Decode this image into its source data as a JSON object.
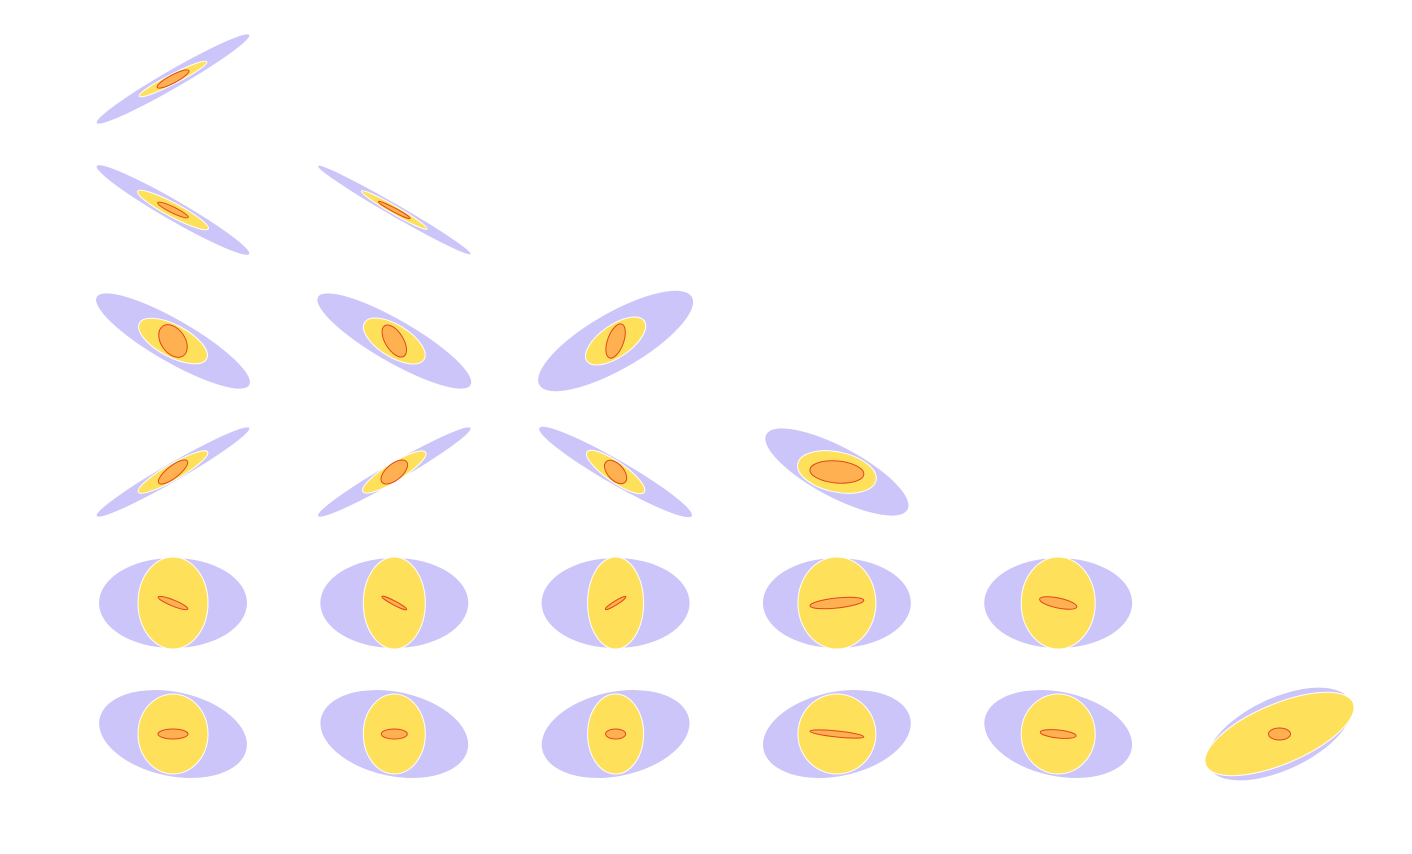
{
  "chart_data": {
    "type": "scatter",
    "description_kind": "triangle-plot",
    "grid": false,
    "legend": "none",
    "colors": {
      "outer": "#cbc5fa",
      "middle": "#ffe05a",
      "middle_edge": "#ffffff",
      "inner": "#ffb152",
      "inner_edge": "#e0471a"
    },
    "panels": [
      {
        "row": 1,
        "col": 1,
        "ellipses": [
          {
            "layer": "outer",
            "angle": -30,
            "rx": 88,
            "ry": 9
          },
          {
            "layer": "middle",
            "angle": -27,
            "rx": 38,
            "ry": 5
          },
          {
            "layer": "inner",
            "angle": -28,
            "rx": 18,
            "ry": 4
          }
        ]
      },
      {
        "row": 2,
        "col": 1,
        "ellipses": [
          {
            "layer": "outer",
            "angle": 30,
            "rx": 88,
            "ry": 10
          },
          {
            "layer": "middle",
            "angle": 28,
            "rx": 40,
            "ry": 7
          },
          {
            "layer": "inner",
            "angle": 26,
            "rx": 17,
            "ry": 3
          }
        ]
      },
      {
        "row": 2,
        "col": 2,
        "ellipses": [
          {
            "layer": "outer",
            "angle": 30,
            "rx": 88,
            "ry": 6
          },
          {
            "layer": "middle",
            "angle": 30,
            "rx": 38,
            "ry": 4
          },
          {
            "layer": "inner",
            "angle": 28,
            "rx": 18,
            "ry": 2
          }
        ]
      },
      {
        "row": 3,
        "col": 1,
        "ellipses": [
          {
            "layer": "outer",
            "angle": 30,
            "rx": 88,
            "ry": 21
          },
          {
            "layer": "middle",
            "angle": 28,
            "rx": 38,
            "ry": 16
          },
          {
            "layer": "inner",
            "angle": 55,
            "rx": 18,
            "ry": 12
          }
        ]
      },
      {
        "row": 3,
        "col": 2,
        "ellipses": [
          {
            "layer": "outer",
            "angle": 30,
            "rx": 88,
            "ry": 21
          },
          {
            "layer": "middle",
            "angle": 32,
            "rx": 35,
            "ry": 16
          },
          {
            "layer": "inner",
            "angle": 58,
            "rx": 18,
            "ry": 9
          }
        ]
      },
      {
        "row": 3,
        "col": 3,
        "ellipses": [
          {
            "layer": "outer",
            "angle": -30,
            "rx": 88,
            "ry": 28
          },
          {
            "layer": "middle",
            "angle": -35,
            "rx": 35,
            "ry": 16
          },
          {
            "layer": "inner",
            "angle": -70,
            "rx": 18,
            "ry": 8
          }
        ]
      },
      {
        "row": 4,
        "col": 1,
        "ellipses": [
          {
            "layer": "outer",
            "angle": -30,
            "rx": 88,
            "ry": 9
          },
          {
            "layer": "middle",
            "angle": -30,
            "rx": 40,
            "ry": 8
          },
          {
            "layer": "inner",
            "angle": -38,
            "rx": 18,
            "ry": 6
          }
        ]
      },
      {
        "row": 4,
        "col": 2,
        "ellipses": [
          {
            "layer": "outer",
            "angle": -30,
            "rx": 88,
            "ry": 9
          },
          {
            "layer": "middle",
            "angle": -32,
            "rx": 37,
            "ry": 9
          },
          {
            "layer": "inner",
            "angle": -40,
            "rx": 16,
            "ry": 8
          }
        ]
      },
      {
        "row": 4,
        "col": 3,
        "ellipses": [
          {
            "layer": "outer",
            "angle": 30,
            "rx": 88,
            "ry": 12
          },
          {
            "layer": "middle",
            "angle": 35,
            "rx": 35,
            "ry": 10
          },
          {
            "layer": "inner",
            "angle": 48,
            "rx": 14,
            "ry": 8
          }
        ]
      },
      {
        "row": 4,
        "col": 4,
        "ellipses": [
          {
            "layer": "outer",
            "angle": 28,
            "rx": 80,
            "ry": 25
          },
          {
            "layer": "middle",
            "angle": 12,
            "rx": 40,
            "ry": 20
          },
          {
            "layer": "inner",
            "angle": 5,
            "rx": 27,
            "ry": 11
          }
        ]
      },
      {
        "row": 5,
        "col": 1,
        "ellipses": [
          {
            "layer": "outer",
            "angle": 0,
            "rx": 74,
            "ry": 45
          },
          {
            "layer": "middle",
            "angle": 0,
            "rx": 35,
            "ry": 46
          },
          {
            "layer": "inner",
            "angle": 22,
            "rx": 16,
            "ry": 3
          }
        ]
      },
      {
        "row": 5,
        "col": 2,
        "ellipses": [
          {
            "layer": "outer",
            "angle": 0,
            "rx": 74,
            "ry": 45
          },
          {
            "layer": "middle",
            "angle": 0,
            "rx": 31,
            "ry": 46
          },
          {
            "layer": "inner",
            "angle": 28,
            "rx": 14,
            "ry": 2
          }
        ]
      },
      {
        "row": 5,
        "col": 3,
        "ellipses": [
          {
            "layer": "outer",
            "angle": 0,
            "rx": 74,
            "ry": 45
          },
          {
            "layer": "middle",
            "angle": 0,
            "rx": 28,
            "ry": 46
          },
          {
            "layer": "inner",
            "angle": -32,
            "rx": 12,
            "ry": 2
          }
        ]
      },
      {
        "row": 5,
        "col": 4,
        "ellipses": [
          {
            "layer": "outer",
            "angle": 0,
            "rx": 74,
            "ry": 45
          },
          {
            "layer": "middle",
            "angle": 0,
            "rx": 39,
            "ry": 46
          },
          {
            "layer": "inner",
            "angle": -6,
            "rx": 27,
            "ry": 5
          }
        ]
      },
      {
        "row": 5,
        "col": 5,
        "ellipses": [
          {
            "layer": "outer",
            "angle": 0,
            "rx": 74,
            "ry": 45
          },
          {
            "layer": "middle",
            "angle": 0,
            "rx": 37,
            "ry": 46
          },
          {
            "layer": "inner",
            "angle": 12,
            "rx": 19,
            "ry": 5
          }
        ]
      },
      {
        "row": 6,
        "col": 1,
        "ellipses": [
          {
            "layer": "outer",
            "angle": 12,
            "rx": 75,
            "ry": 42
          },
          {
            "layer": "middle",
            "angle": 0,
            "rx": 35,
            "ry": 40
          },
          {
            "layer": "inner",
            "angle": 0,
            "rx": 15,
            "ry": 5
          }
        ]
      },
      {
        "row": 6,
        "col": 2,
        "ellipses": [
          {
            "layer": "outer",
            "angle": 12,
            "rx": 75,
            "ry": 42
          },
          {
            "layer": "middle",
            "angle": 0,
            "rx": 31,
            "ry": 40
          },
          {
            "layer": "inner",
            "angle": 0,
            "rx": 13,
            "ry": 5
          }
        ]
      },
      {
        "row": 6,
        "col": 3,
        "ellipses": [
          {
            "layer": "outer",
            "angle": -12,
            "rx": 75,
            "ry": 42
          },
          {
            "layer": "middle",
            "angle": 0,
            "rx": 28,
            "ry": 40
          },
          {
            "layer": "inner",
            "angle": 0,
            "rx": 10,
            "ry": 5
          }
        ]
      },
      {
        "row": 6,
        "col": 4,
        "ellipses": [
          {
            "layer": "outer",
            "angle": -12,
            "rx": 75,
            "ry": 42
          },
          {
            "layer": "middle",
            "angle": 0,
            "rx": 39,
            "ry": 40
          },
          {
            "layer": "inner",
            "angle": 6,
            "rx": 27,
            "ry": 3
          }
        ]
      },
      {
        "row": 6,
        "col": 5,
        "ellipses": [
          {
            "layer": "outer",
            "angle": 12,
            "rx": 75,
            "ry": 42
          },
          {
            "layer": "middle",
            "angle": 0,
            "rx": 37,
            "ry": 40
          },
          {
            "layer": "inner",
            "angle": 6,
            "rx": 18,
            "ry": 4
          }
        ]
      },
      {
        "row": 6,
        "col": 6,
        "ellipses": [
          {
            "layer": "outer",
            "angle": -25,
            "rx": 78,
            "ry": 36
          },
          {
            "layer": "middle",
            "angle": -23,
            "rx": 80,
            "ry": 30
          },
          {
            "layer": "inner",
            "angle": 0,
            "rx": 11,
            "ry": 6
          }
        ]
      }
    ]
  }
}
